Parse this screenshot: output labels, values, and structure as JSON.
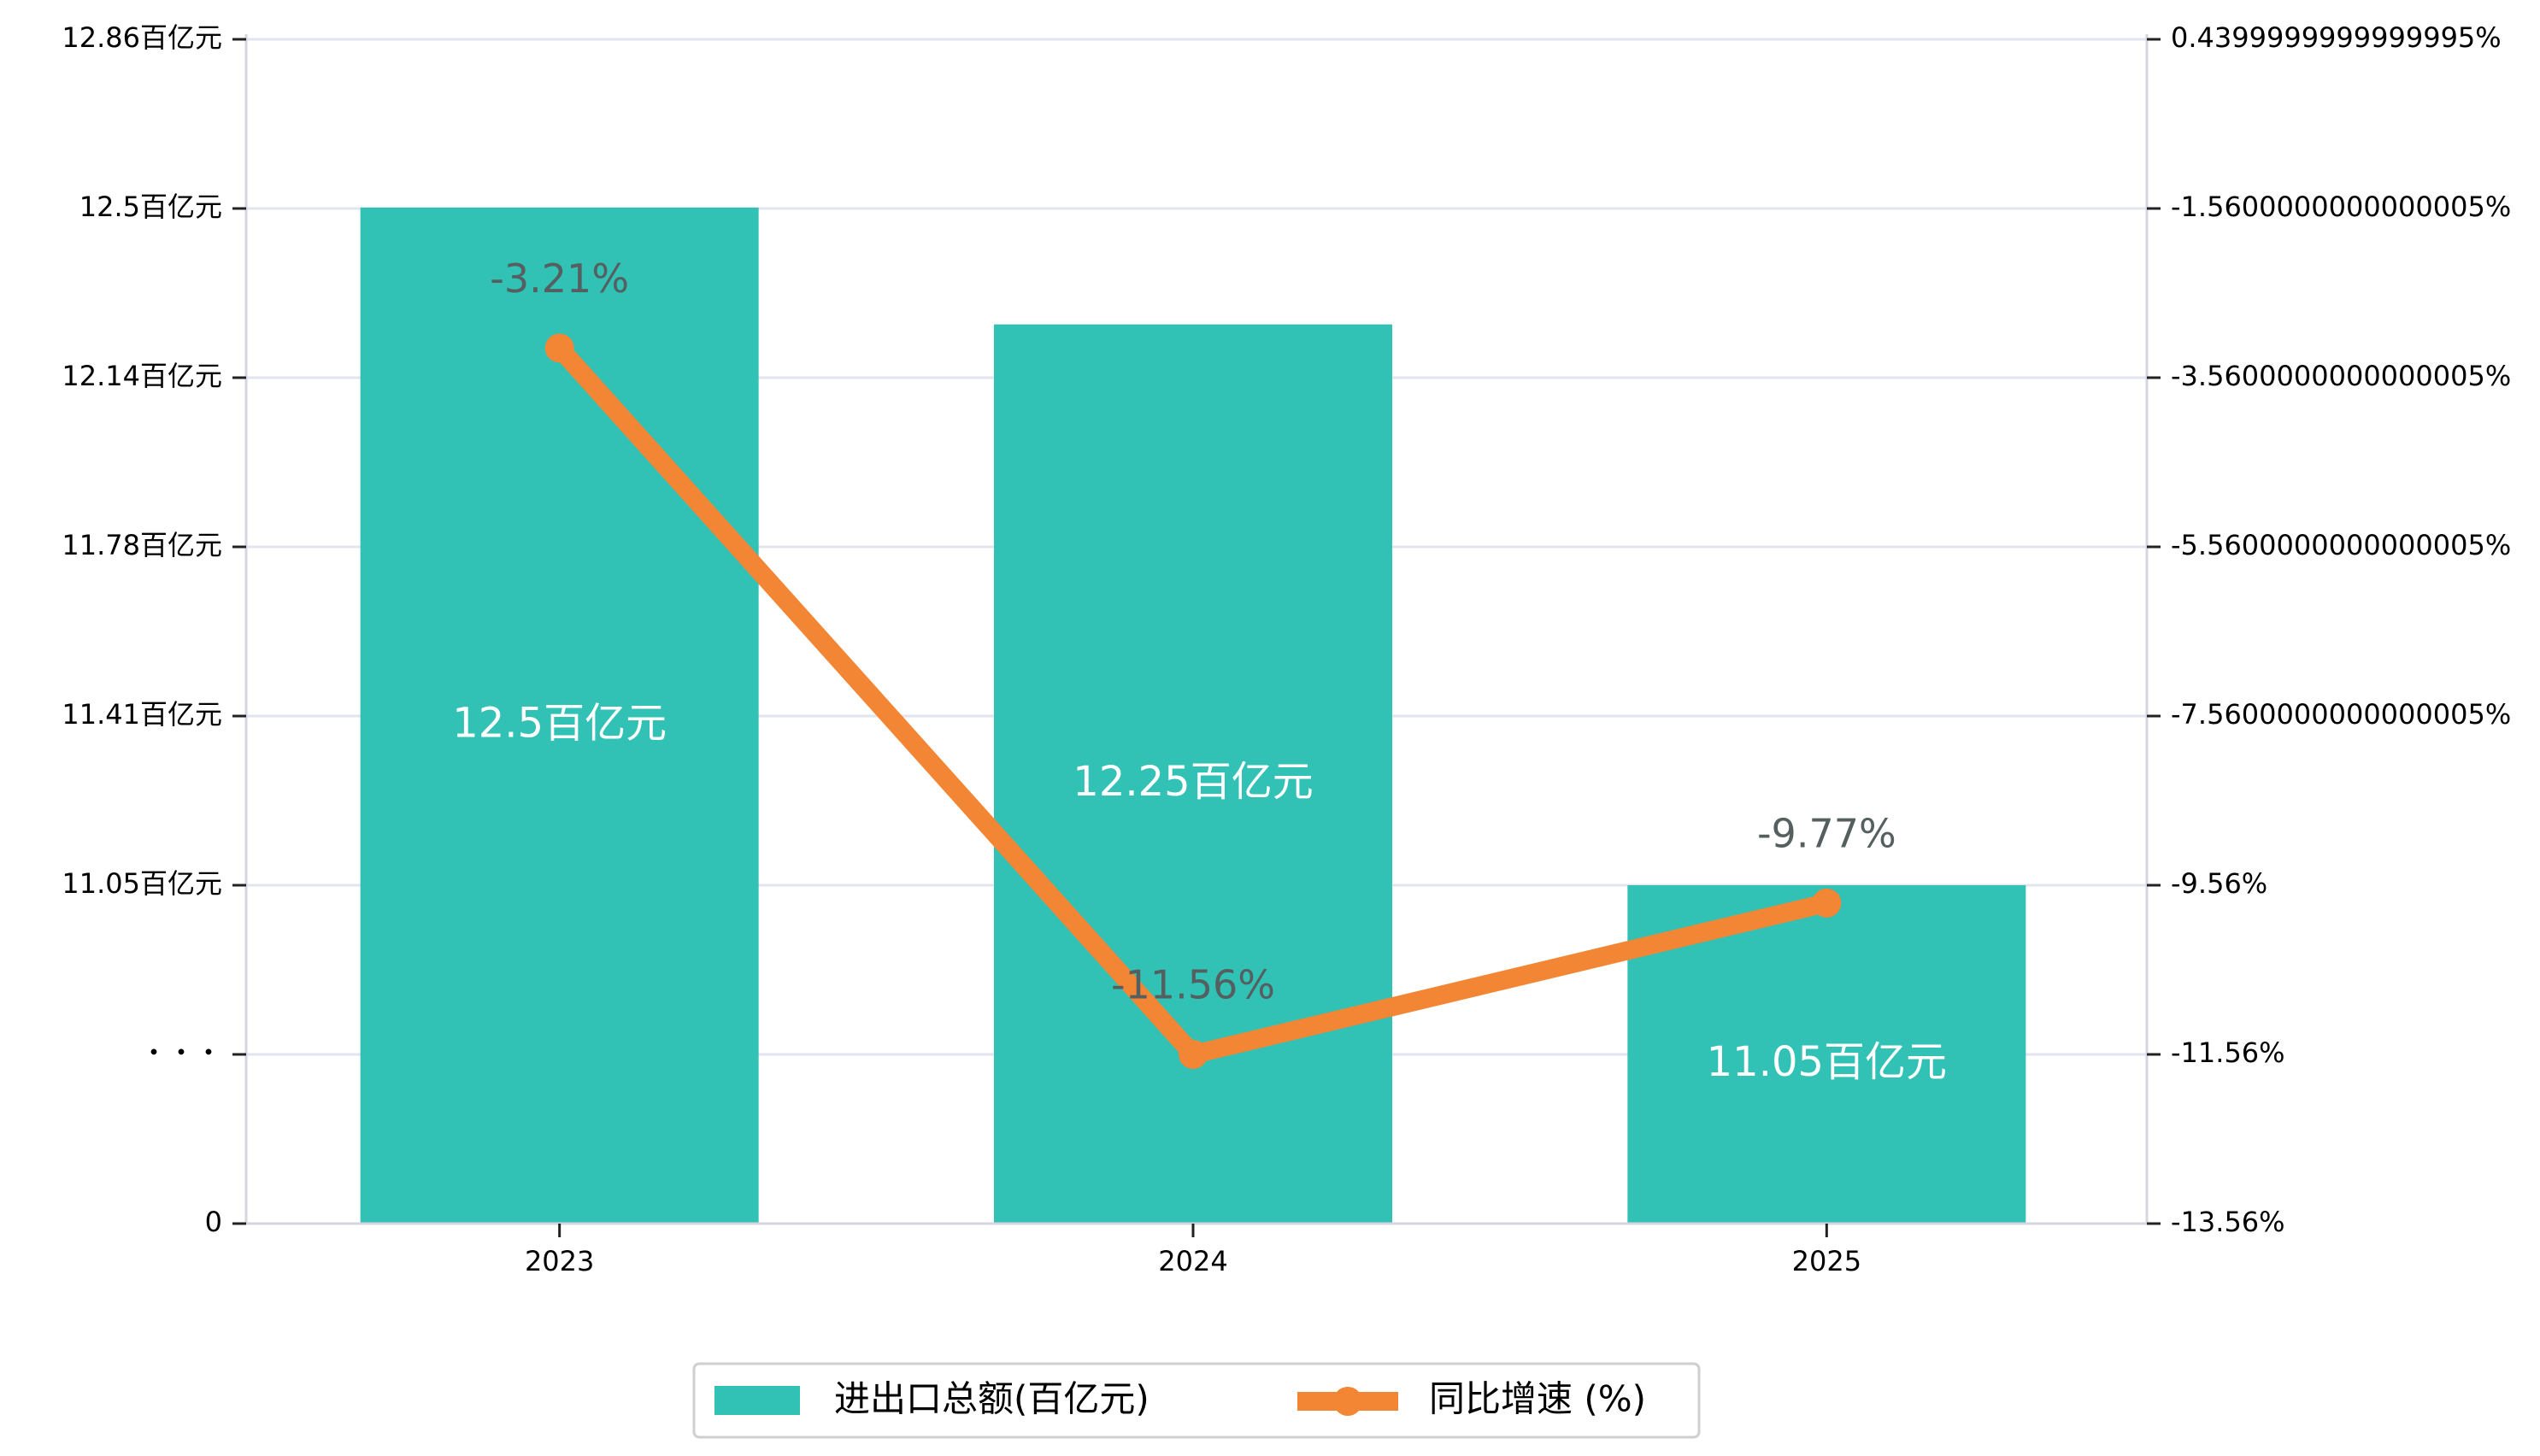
{
  "colors": {
    "bar": "#31c1b5",
    "line": "#f28634",
    "grid": "#e3e4ee",
    "axis": "#d4d6e2",
    "line_label": "#555f5f"
  },
  "chart_data": {
    "type": "bar",
    "categories": [
      "2023",
      "2024",
      "2025"
    ],
    "series": [
      {
        "name": "进出口总额(百亿元)",
        "type": "bar",
        "axis": "left",
        "values": [
          12.5,
          12.25,
          11.05
        ],
        "labels": [
          "12.5百亿元",
          "12.25百亿元",
          "11.05百亿元"
        ]
      },
      {
        "name": "同比增速 (%)",
        "type": "line",
        "axis": "right",
        "values": [
          -3.21,
          -11.56,
          -9.77
        ],
        "labels": [
          "-3.21%",
          "-11.56%",
          "-9.77%"
        ]
      }
    ],
    "left_axis": {
      "broken": true,
      "ticks": [
        {
          "value": 0,
          "label": "0"
        },
        {
          "value": null,
          "label": "・・・"
        },
        {
          "value": 11.05,
          "label": "11.05百亿元"
        },
        {
          "value": 11.41,
          "label": "11.41百亿元"
        },
        {
          "value": 11.78,
          "label": "11.78百亿元"
        },
        {
          "value": 12.14,
          "label": "12.14百亿元"
        },
        {
          "value": 12.5,
          "label": "12.5百亿元"
        },
        {
          "value": 12.86,
          "label": "12.86百亿元"
        }
      ]
    },
    "right_axis": {
      "ylim": [
        -13.56,
        0.44
      ],
      "ticks": [
        {
          "value": -13.56,
          "label": "-13.56%"
        },
        {
          "value": -11.56,
          "label": "-11.56%"
        },
        {
          "value": -9.56,
          "label": "-9.56%"
        },
        {
          "value": -7.56,
          "label": "-7.5600000000000005%"
        },
        {
          "value": -5.56,
          "label": "-5.5600000000000005%"
        },
        {
          "value": -3.56,
          "label": "-3.5600000000000005%"
        },
        {
          "value": -1.56,
          "label": "-1.5600000000000005%"
        },
        {
          "value": 0.44,
          "label": "0.4399999999999995%"
        }
      ]
    },
    "grid": true,
    "legend_position": "bottom-center"
  }
}
